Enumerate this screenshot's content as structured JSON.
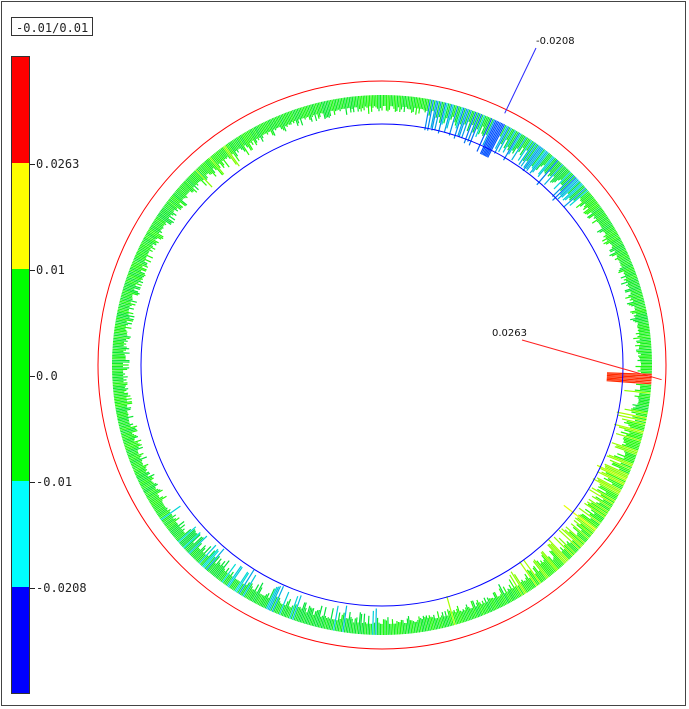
{
  "tolerance_label": "-0.01/0.01",
  "legend": {
    "bands": [
      {
        "color": "#ff0000",
        "from": 0.0263,
        "to": null
      },
      {
        "color": "#ffff00",
        "from": 0.01,
        "to": 0.0263
      },
      {
        "color": "#00ff00",
        "from": -0.01,
        "to": 0.01
      },
      {
        "color": "#00ffff",
        "from": -0.0208,
        "to": -0.01
      },
      {
        "color": "#0000ff",
        "from": null,
        "to": -0.0208
      }
    ],
    "ticks": [
      "0.0263",
      "0.01",
      "0.0",
      "-0.01",
      "-0.0208"
    ]
  },
  "chart_data": {
    "type": "polar-deviation",
    "scale_max": 0.0263,
    "scale_min": -0.0208,
    "tolerance": [
      -0.01,
      0.01
    ],
    "annotations": [
      {
        "label": "-0.0208",
        "value": -0.0208,
        "angle_deg": 64
      },
      {
        "label": "0.0263",
        "value": 0.0263,
        "angle_deg": 357
      }
    ],
    "colors": {
      "nominal_circle": "#0000ff",
      "upper_limit_circle": "#ff0000"
    }
  }
}
